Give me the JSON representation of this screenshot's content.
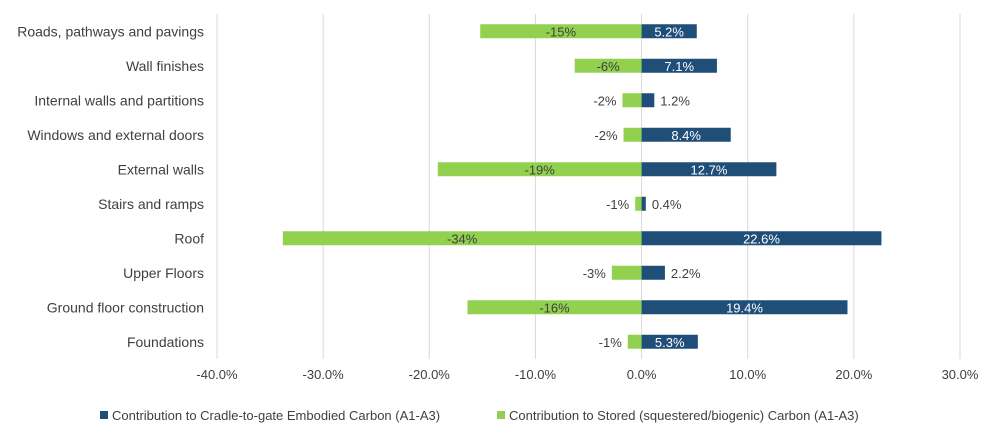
{
  "chart_data": {
    "type": "bar",
    "orientation": "horizontal",
    "categories": [
      "Roads, pathways and pavings",
      "Wall finishes",
      "Internal walls and partitions",
      "Windows and external doors",
      "External walls",
      "Stairs and ramps",
      "Roof",
      "Upper Floors",
      "Ground floor construction",
      "Foundations"
    ],
    "series": [
      {
        "name": "Contribution to Cradle-to-gate Embodied Carbon (A1-A3)",
        "color": "#1f4e79",
        "values": [
          5.2,
          7.1,
          1.2,
          8.4,
          12.7,
          0.4,
          22.6,
          2.2,
          19.4,
          5.3
        ],
        "labels": [
          "5.2%",
          "7.1%",
          "1.2%",
          "8.4%",
          "12.7%",
          "0.4%",
          "22.6%",
          "2.2%",
          "19.4%",
          "5.3%"
        ]
      },
      {
        "name": "Contribution to Stored (squestered/biogenic) Carbon (A1-A3)",
        "color": "#92d050",
        "values": [
          -15.2,
          -6.3,
          -1.8,
          -1.7,
          -19.2,
          -0.6,
          -33.8,
          -2.8,
          -16.4,
          -1.3
        ],
        "labels": [
          "-15%",
          "-6%",
          "-2%",
          "-2%",
          "-19%",
          "-1%",
          "-34%",
          "-3%",
          "-16%",
          "-1%"
        ]
      }
    ],
    "xlim": [
      -40,
      30
    ],
    "xticks": [
      "-40.0%",
      "-30.0%",
      "-20.0%",
      "-10.0%",
      "0.0%",
      "10.0%",
      "20.0%",
      "30.0%"
    ],
    "xtick_values": [
      -40,
      -30,
      -20,
      -10,
      0,
      10,
      20,
      30
    ],
    "grid": true,
    "legend_position": "bottom"
  }
}
